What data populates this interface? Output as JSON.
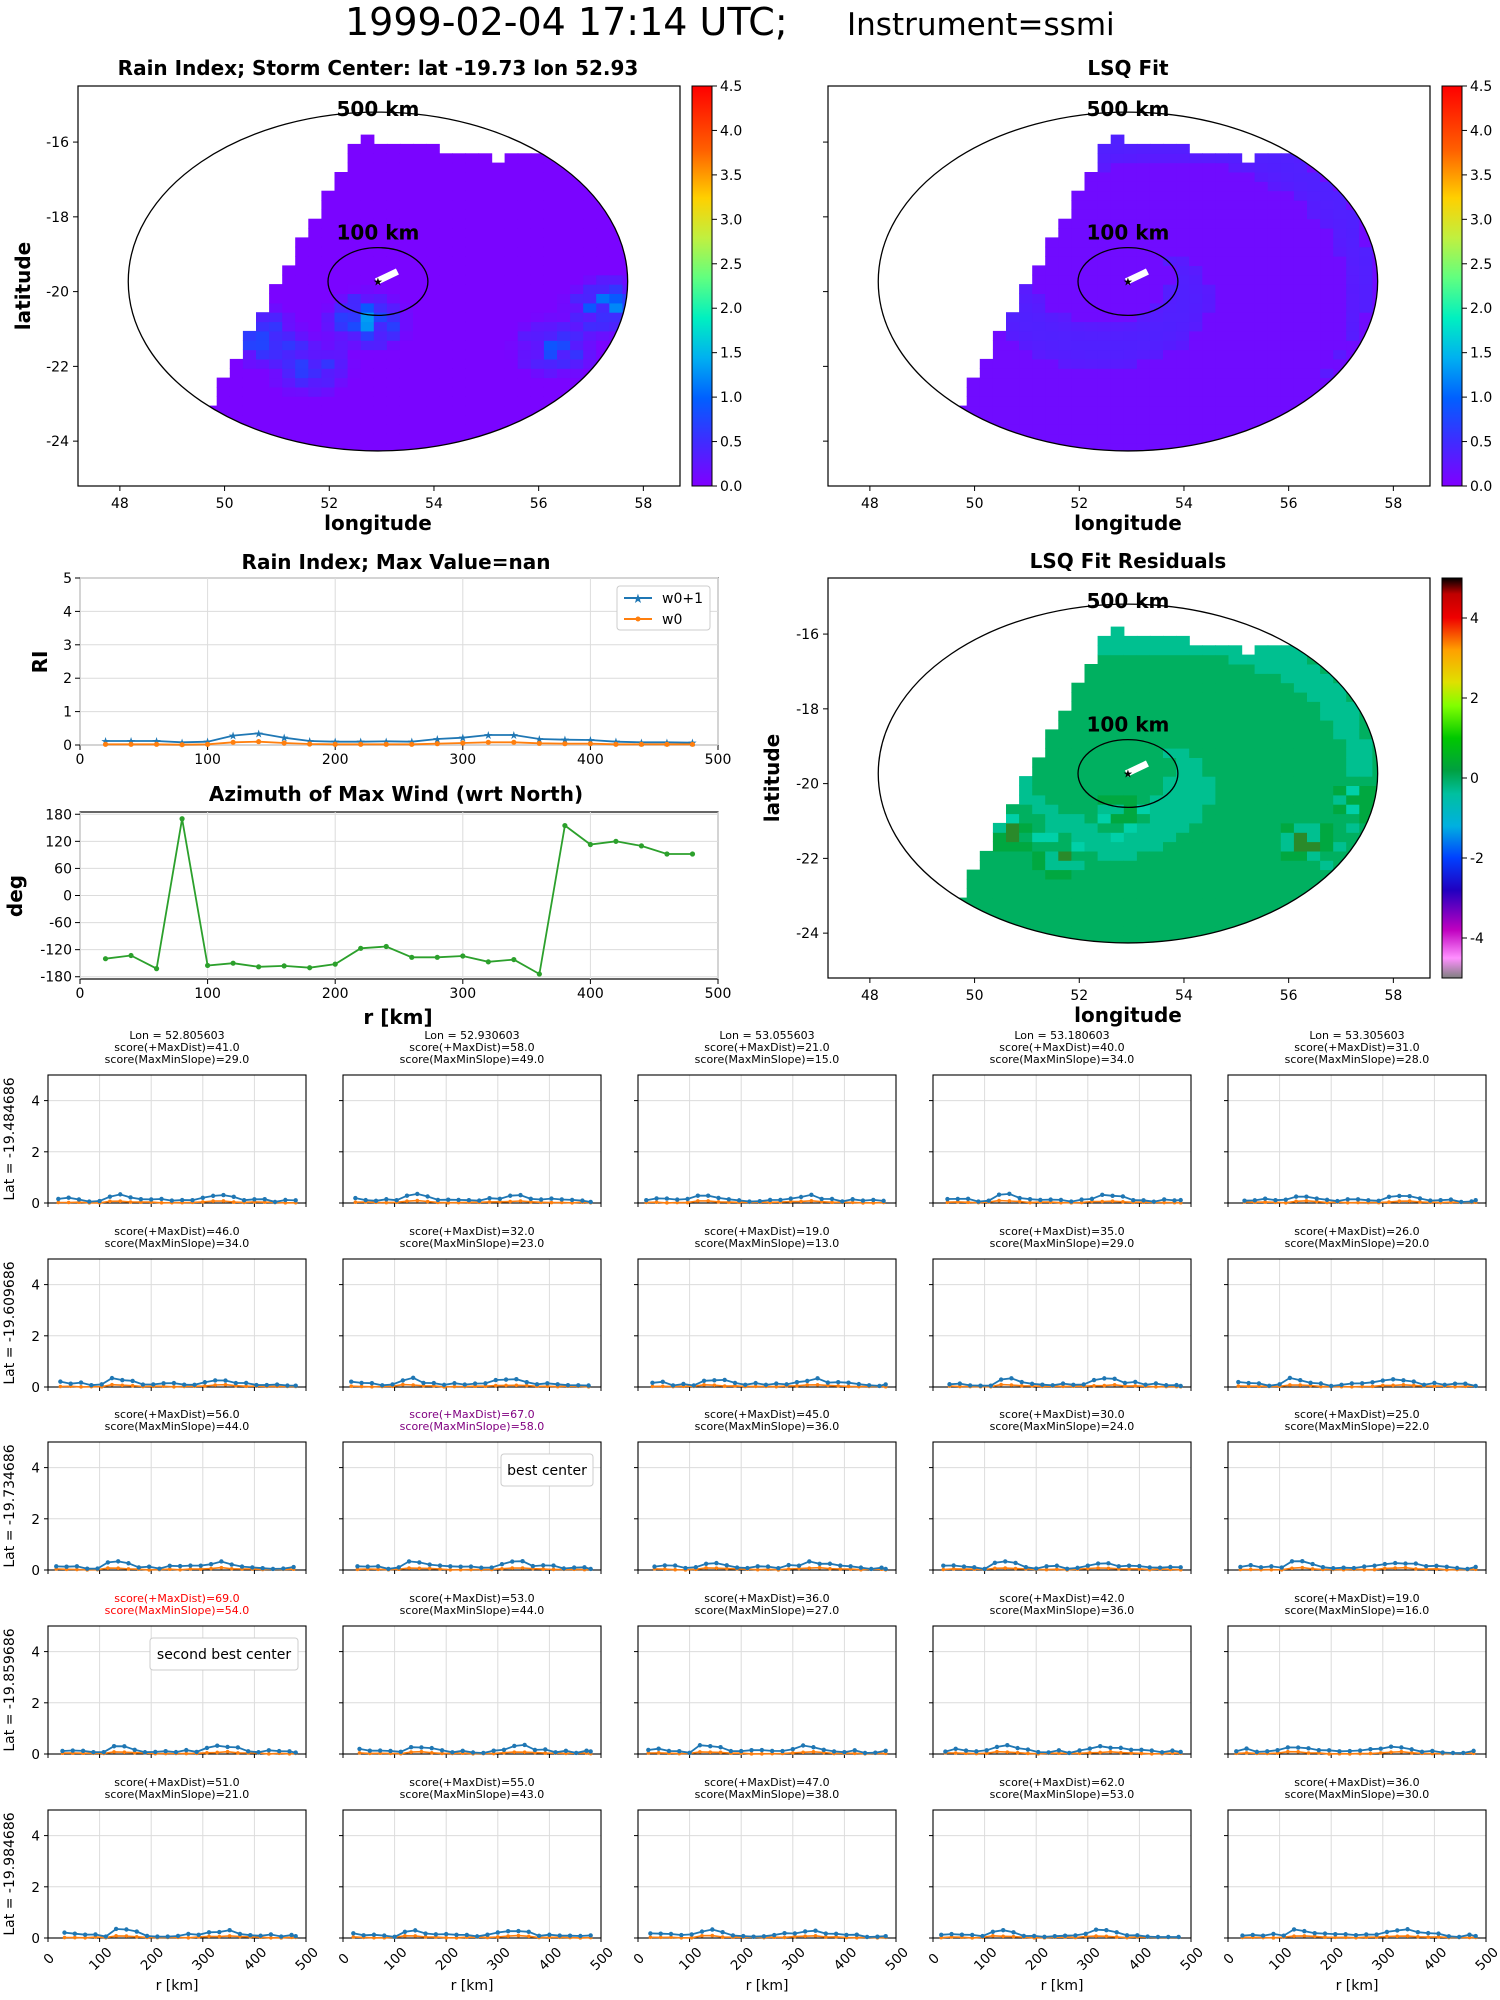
{
  "figure": {
    "title_main": "1999-02-04 17:14 UTC;",
    "title_inst": "Instrument=ssmi"
  },
  "chart_data": [
    {
      "id": "rain_index_map",
      "type": "heatmap",
      "title": "Rain Index; Storm Center: lat -19.73 lon 52.93",
      "xlabel": "longitude",
      "ylabel": "latitude",
      "xticks": [
        "48",
        "50",
        "52",
        "54",
        "56",
        "58"
      ],
      "yticks": [
        "-16",
        "-18",
        "-20",
        "-22",
        "-24"
      ],
      "xlim": [
        47.2,
        58.7
      ],
      "ylim": [
        -25.2,
        -14.5
      ],
      "center": {
        "lon": 52.93,
        "lat": -19.73
      },
      "ring_labels": [
        "500 km",
        "100 km"
      ],
      "colorbar": {
        "ticks": [
          "0.0",
          "0.5",
          "1.0",
          "1.5",
          "2.0",
          "2.5",
          "3.0",
          "3.5",
          "4.0",
          "4.5"
        ],
        "range": [
          0,
          4.5
        ],
        "cmap": "rainbow"
      },
      "background_value": 0.0,
      "hotspots": [
        {
          "lon": 52.6,
          "lat": -20.9,
          "value": 1.2
        },
        {
          "lon": 50.6,
          "lat": -21.3,
          "value": 0.9
        },
        {
          "lon": 51.5,
          "lat": -22.1,
          "value": 0.7
        },
        {
          "lon": 56.2,
          "lat": -21.6,
          "value": 0.8
        },
        {
          "lon": 57.2,
          "lat": -20.5,
          "value": 1.1
        }
      ]
    },
    {
      "id": "lsq_fit_map",
      "type": "heatmap",
      "title": "LSQ Fit",
      "xlabel": "longitude",
      "ylabel": "",
      "xticks": [
        "48",
        "50",
        "52",
        "54",
        "56",
        "58"
      ],
      "yticks": [
        "",
        "",
        "",
        "",
        ""
      ],
      "xlim": [
        47.2,
        58.7
      ],
      "ylim": [
        -25.2,
        -14.5
      ],
      "ring_labels": [
        "500 km",
        "100 km"
      ],
      "colorbar": {
        "ticks": [
          "0.0",
          "0.5",
          "1.0",
          "1.5",
          "2.0",
          "2.5",
          "3.0",
          "3.5",
          "4.0",
          "4.5"
        ],
        "range": [
          0,
          4.5
        ],
        "cmap": "rainbow"
      },
      "background_value": 0.1,
      "spiral_value": 0.3
    },
    {
      "id": "rain_index_profile",
      "type": "line",
      "title": "Rain Index; Max Value=nan",
      "xlabel": "",
      "ylabel": "RI",
      "xticks": [
        "0",
        "100",
        "200",
        "300",
        "400",
        "500"
      ],
      "yticks": [
        "0",
        "1",
        "2",
        "3",
        "4",
        "5"
      ],
      "xlim": [
        0,
        500
      ],
      "ylim": [
        0,
        5
      ],
      "x": [
        20,
        40,
        60,
        80,
        100,
        120,
        140,
        160,
        180,
        200,
        220,
        240,
        260,
        280,
        300,
        320,
        340,
        360,
        380,
        400,
        420,
        440,
        460,
        480
      ],
      "series": [
        {
          "name": "w0+1",
          "color": "#1f77b4",
          "marker": "star",
          "values": [
            0.12,
            0.12,
            0.12,
            0.08,
            0.1,
            0.28,
            0.35,
            0.22,
            0.12,
            0.1,
            0.1,
            0.11,
            0.1,
            0.18,
            0.22,
            0.3,
            0.3,
            0.18,
            0.16,
            0.15,
            0.1,
            0.08,
            0.08,
            0.07
          ]
        },
        {
          "name": "w0",
          "color": "#ff7f0e",
          "marker": "dot",
          "values": [
            0.02,
            0.02,
            0.02,
            0.01,
            0.02,
            0.08,
            0.1,
            0.06,
            0.03,
            0.02,
            0.02,
            0.02,
            0.02,
            0.04,
            0.06,
            0.08,
            0.08,
            0.05,
            0.04,
            0.04,
            0.02,
            0.02,
            0.02,
            0.02
          ]
        }
      ]
    },
    {
      "id": "azimuth_max_wind",
      "type": "line",
      "title": "Azimuth of Max Wind (wrt North)",
      "xlabel": "r [km]",
      "ylabel": "deg",
      "xticks": [
        "0",
        "100",
        "200",
        "300",
        "400",
        "500"
      ],
      "yticks": [
        "180",
        "120",
        "60",
        "0",
        "-60",
        "-120",
        "-180"
      ],
      "xlim": [
        0,
        500
      ],
      "ylim": [
        -185,
        185
      ],
      "x": [
        20,
        40,
        60,
        80,
        100,
        120,
        140,
        160,
        180,
        200,
        220,
        240,
        260,
        280,
        300,
        320,
        340,
        360,
        380,
        400,
        420,
        440,
        460,
        480
      ],
      "series": [
        {
          "name": "",
          "color": "#2ca02c",
          "values": [
            -140,
            -133,
            -162,
            170,
            -155,
            -150,
            -158,
            -156,
            -160,
            -152,
            -117,
            -113,
            -137,
            -137,
            -134,
            -147,
            -142,
            -174,
            155,
            113,
            120,
            110,
            92,
            92
          ]
        }
      ]
    },
    {
      "id": "lsq_residuals_map",
      "type": "heatmap",
      "title": "LSQ Fit Residuals",
      "xlabel": "longitude",
      "ylabel": "latitude",
      "xticks": [
        "48",
        "50",
        "52",
        "54",
        "56",
        "58"
      ],
      "yticks": [
        "-16",
        "-18",
        "-20",
        "-22",
        "-24"
      ],
      "xlim": [
        47.2,
        58.7
      ],
      "ylim": [
        -25.2,
        -14.5
      ],
      "ring_labels": [
        "500 km",
        "100 km"
      ],
      "colorbar": {
        "ticks": [
          "4",
          "2",
          "0",
          "-2",
          "-4"
        ],
        "range": [
          -5,
          5
        ],
        "cmap": "nipy_spectral_r"
      },
      "background_value": 0.0
    },
    {
      "id": "candidate_grid",
      "type": "line",
      "rows_lat_labels": [
        "Lat = -19.484686",
        "Lat = -19.609686",
        "Lat = -19.734686",
        "Lat = -19.859686",
        "Lat = -19.984686"
      ],
      "cols_lon_labels": [
        "Lon = 52.805603",
        "Lon = 52.930603",
        "Lon = 53.055603",
        "Lon = 53.180603",
        "Lon = 53.305603"
      ],
      "xlabel": "r [km]",
      "xticks": [
        "0",
        "100",
        "200",
        "300",
        "400",
        "500"
      ],
      "yticks": [
        "0",
        "2",
        "4"
      ],
      "xlim": [
        0,
        500
      ],
      "ylim": [
        0,
        5
      ],
      "scores": [
        [
          [
            "score(+MaxDist)=41.0",
            "score(MaxMinSlope)=29.0"
          ],
          [
            "score(+MaxDist)=58.0",
            "score(MaxMinSlope)=49.0"
          ],
          [
            "score(+MaxDist)=21.0",
            "score(MaxMinSlope)=15.0"
          ],
          [
            "score(+MaxDist)=40.0",
            "score(MaxMinSlope)=34.0"
          ],
          [
            "score(+MaxDist)=31.0",
            "score(MaxMinSlope)=28.0"
          ]
        ],
        [
          [
            "score(+MaxDist)=46.0",
            "score(MaxMinSlope)=34.0"
          ],
          [
            "score(+MaxDist)=32.0",
            "score(MaxMinSlope)=23.0"
          ],
          [
            "score(+MaxDist)=19.0",
            "score(MaxMinSlope)=13.0"
          ],
          [
            "score(+MaxDist)=35.0",
            "score(MaxMinSlope)=29.0"
          ],
          [
            "score(+MaxDist)=26.0",
            "score(MaxMinSlope)=20.0"
          ]
        ],
        [
          [
            "score(+MaxDist)=56.0",
            "score(MaxMinSlope)=44.0"
          ],
          [
            "score(+MaxDist)=67.0",
            "score(MaxMinSlope)=58.0"
          ],
          [
            "score(+MaxDist)=45.0",
            "score(MaxMinSlope)=36.0"
          ],
          [
            "score(+MaxDist)=30.0",
            "score(MaxMinSlope)=24.0"
          ],
          [
            "score(+MaxDist)=25.0",
            "score(MaxMinSlope)=22.0"
          ]
        ],
        [
          [
            "score(+MaxDist)=69.0",
            "score(MaxMinSlope)=54.0"
          ],
          [
            "score(+MaxDist)=53.0",
            "score(MaxMinSlope)=44.0"
          ],
          [
            "score(+MaxDist)=36.0",
            "score(MaxMinSlope)=27.0"
          ],
          [
            "score(+MaxDist)=42.0",
            "score(MaxMinSlope)=36.0"
          ],
          [
            "score(+MaxDist)=19.0",
            "score(MaxMinSlope)=16.0"
          ]
        ],
        [
          [
            "score(+MaxDist)=51.0",
            "score(MaxMinSlope)=21.0"
          ],
          [
            "score(+MaxDist)=55.0",
            "score(MaxMinSlope)=43.0"
          ],
          [
            "score(+MaxDist)=47.0",
            "score(MaxMinSlope)=38.0"
          ],
          [
            "score(+MaxDist)=62.0",
            "score(MaxMinSlope)=53.0"
          ],
          [
            "score(+MaxDist)=36.0",
            "score(MaxMinSlope)=30.0"
          ]
        ]
      ],
      "highlights": [
        {
          "row": 2,
          "col": 1,
          "color": "#800080",
          "label": "best center"
        },
        {
          "row": 3,
          "col": 0,
          "color": "#ff0000",
          "label": "second best center"
        }
      ],
      "profile_x": [
        20,
        40,
        60,
        80,
        100,
        120,
        140,
        160,
        180,
        200,
        220,
        240,
        260,
        280,
        300,
        320,
        340,
        360,
        380,
        400,
        420,
        440,
        460,
        480
      ],
      "profile_w0p1": [
        0.15,
        0.16,
        0.12,
        0.1,
        0.1,
        0.3,
        0.3,
        0.22,
        0.12,
        0.1,
        0.1,
        0.11,
        0.1,
        0.14,
        0.22,
        0.28,
        0.3,
        0.2,
        0.14,
        0.12,
        0.1,
        0.08,
        0.08,
        0.07
      ],
      "profile_w0": [
        0.03,
        0.03,
        0.02,
        0.02,
        0.02,
        0.08,
        0.08,
        0.05,
        0.03,
        0.02,
        0.02,
        0.02,
        0.02,
        0.03,
        0.05,
        0.07,
        0.08,
        0.05,
        0.03,
        0.03,
        0.02,
        0.02,
        0.02,
        0.02
      ]
    }
  ],
  "colors": {
    "w0p1": "#1f77b4",
    "w0": "#ff7f0e",
    "azimuth": "#2ca02c",
    "grid": "#d9d9d9"
  }
}
